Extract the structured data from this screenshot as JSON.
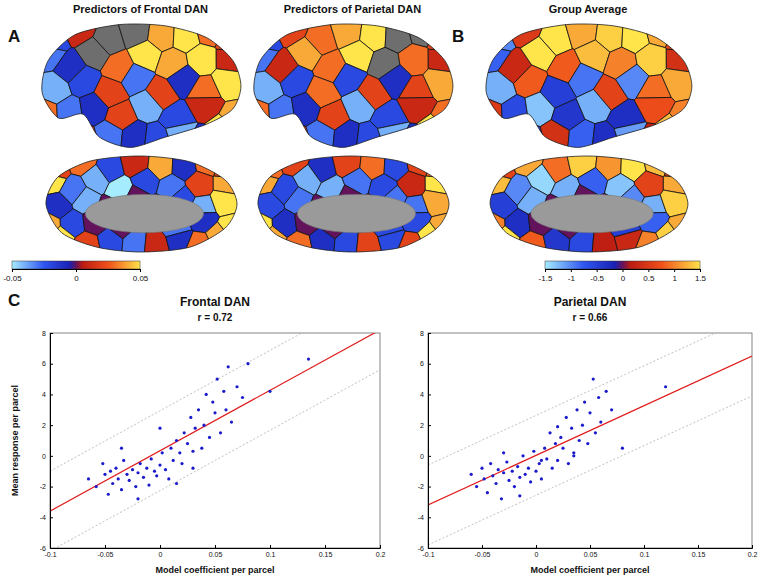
{
  "chart_data": [
    {
      "type": "brain_map",
      "panel": "A",
      "title": "Predictors of Frontal DAN",
      "lateral": [
        -0.02,
        0.01,
        null,
        null,
        0.04,
        0.05,
        0.03,
        0.02,
        -0.03,
        -0.01,
        null,
        0.03,
        0.05,
        0.04,
        0.05,
        0.01,
        -0.04,
        -0.02,
        0.02,
        -0.03,
        0.02,
        -0.01,
        0.03,
        0.05,
        0.03,
        -0.03,
        -0.01,
        0.02,
        -0.04,
        -0.02,
        0.01,
        0.04,
        -0.05,
        0.02,
        -0.03,
        -0.01,
        -0.02,
        -0.04,
        -0.01,
        0.05
      ],
      "medial": [
        0.02,
        0.03,
        -0.02,
        0.01,
        0.04,
        -0.01,
        0.03,
        0.02,
        0.05,
        -0.03,
        -0.04,
        -0.05,
        -0.02,
        -0.03,
        0.02,
        0.04,
        -0.01,
        -0.04,
        0.0,
        0.0,
        0.0,
        -0.02,
        -0.04,
        0.05,
        0.04,
        -0.02,
        0.0,
        0.0,
        0.0,
        -0.03,
        -0.01,
        0.05,
        0.05,
        0.02,
        -0.02,
        -0.03,
        0.01,
        -0.01,
        0.03,
        0.04
      ],
      "colorbar": {
        "range": [
          -0.05,
          0.05
        ],
        "ticks": [
          -0.05,
          0,
          0.05
        ]
      }
    },
    {
      "type": "brain_map",
      "title": "Predictors of Parietal DAN",
      "lateral": [
        -0.02,
        0.02,
        0.03,
        0.04,
        0.05,
        null,
        null,
        0.02,
        -0.03,
        0.01,
        0.04,
        0.03,
        0.05,
        null,
        0.03,
        0.01,
        -0.04,
        -0.02,
        0.03,
        -0.02,
        0.02,
        -0.01,
        0.02,
        0.04,
        0.03,
        -0.03,
        -0.01,
        0.02,
        -0.04,
        -0.02,
        0.01,
        0.03,
        -0.05,
        0.02,
        -0.03,
        -0.01,
        -0.02,
        -0.04,
        -0.01,
        0.05
      ],
      "medial": [
        0.03,
        0.02,
        -0.01,
        0.02,
        0.03,
        -0.02,
        0.02,
        0.03,
        0.04,
        -0.02,
        -0.04,
        -0.04,
        -0.03,
        -0.02,
        0.01,
        0.05,
        -0.02,
        -0.03,
        0.0,
        0.0,
        0.0,
        -0.03,
        -0.03,
        0.04,
        0.05,
        -0.01,
        0.0,
        0.0,
        0.0,
        -0.02,
        -0.02,
        0.04,
        0.04,
        0.03,
        -0.01,
        -0.02,
        0.02,
        -0.02,
        0.02,
        0.05
      ]
    },
    {
      "type": "brain_map",
      "panel": "B",
      "title": "Group Average",
      "lateral": [
        -1,
        0.5,
        1.5,
        1.2,
        1.4,
        1.5,
        1.2,
        0.6,
        -0.8,
        0.3,
        1.5,
        0.8,
        1.3,
        1,
        1.4,
        0.4,
        -1.2,
        0.8,
        -0.5,
        -0.9,
        0.6,
        -1,
        0.9,
        1.2,
        0.5,
        -0.6,
        -1.3,
        -0.4,
        -1.2,
        -0.3,
        0.7,
        1,
        1.2,
        -0.5,
        0.4,
        -0.8,
        -0.3,
        -1.1,
        0.2,
        1.3
      ],
      "medial": [
        0.6,
        1.2,
        0.9,
        1.4,
        1.1,
        1.5,
        1.3,
        0.5,
        1.3,
        -1,
        -1.4,
        -1.2,
        -0.8,
        -1.3,
        0.6,
        1.2,
        -0.5,
        -1.2,
        0,
        0,
        0,
        -1,
        -1.2,
        1.4,
        1,
        -0.3,
        0,
        0,
        0,
        -0.5,
        -0.8,
        1.2,
        1.5,
        0.8,
        -0.4,
        -0.6,
        0.2,
        0.3,
        1,
        1.4
      ],
      "colorbar": {
        "range": [
          -1.5,
          1.5
        ],
        "ticks": [
          -1.5,
          -1,
          -0.5,
          0,
          0.5,
          1,
          1.5
        ]
      }
    },
    {
      "type": "scatter",
      "panel": "C",
      "title": "Frontal DAN",
      "subtitle": "r = 0.72",
      "x_label": "Model coefficient per parcel",
      "y_label": "Mean response per parcel",
      "color": "#1a1acc",
      "marker": "dot",
      "x": [
        -0.065,
        -0.058,
        -0.052,
        -0.05,
        -0.047,
        -0.045,
        -0.043,
        -0.04,
        -0.038,
        -0.035,
        -0.033,
        -0.03,
        -0.028,
        -0.025,
        -0.022,
        -0.02,
        -0.018,
        -0.015,
        -0.012,
        -0.01,
        -0.008,
        -0.005,
        -0.003,
        0,
        0.002,
        0.005,
        0.008,
        0.01,
        0.012,
        0.015,
        0.018,
        0.02,
        0.022,
        0.025,
        0.028,
        0.03,
        0.032,
        0.035,
        0.038,
        0.04,
        0.042,
        0.045,
        0.048,
        0.05,
        0.052,
        0.055,
        0.058,
        0.06,
        0.062,
        0.065,
        0.07,
        0.075,
        0.08,
        0.1,
        0.135,
        -0.035,
        -0.02,
        0.0,
        0.015,
        0.03
      ],
      "values": [
        -1.5,
        -2,
        -0.5,
        -1.2,
        -2.5,
        -1,
        -1.8,
        -0.8,
        -1.5,
        -2.2,
        -0.3,
        -1.2,
        -1.6,
        -0.9,
        -2,
        -1.1,
        -0.5,
        -1.4,
        -0.8,
        -1.9,
        -0.2,
        -1,
        -1.3,
        -0.6,
        0.2,
        -0.9,
        -1.5,
        0.5,
        -0.3,
        1,
        0.2,
        -0.5,
        1.5,
        0.8,
        2.5,
        0.3,
        1.8,
        3,
        0.5,
        2,
        4,
        1.2,
        3.5,
        2.8,
        5,
        1.5,
        4.2,
        3,
        5.8,
        2.2,
        4.5,
        3.8,
        6,
        4.2,
        6.3,
        0.5,
        -2.8,
        1.8,
        -1.8,
        -0.8
      ],
      "fit": {
        "x": [
          -0.1,
          0.2
        ],
        "values": [
          -3.6,
          8.2
        ],
        "color": "#e01b1b"
      },
      "upper": {
        "x": [
          -0.1,
          0.2
        ],
        "values": [
          -1.0,
          10.8
        ],
        "color": "#b0b0b0"
      },
      "lower": {
        "x": [
          -0.1,
          0.2
        ],
        "values": [
          -6.2,
          5.6
        ],
        "color": "#b0b0b0"
      },
      "xlim": [
        -0.1,
        0.2
      ],
      "xticks": [
        -0.1,
        -0.05,
        0,
        0.05,
        0.1,
        0.15,
        0.2
      ],
      "ylim": [
        -6,
        8
      ],
      "yticks": [
        -6,
        -4,
        -2,
        0,
        2,
        4,
        6,
        8
      ]
    },
    {
      "type": "scatter",
      "title": "Parietal DAN",
      "subtitle": "r = 0.66",
      "x_label": "Model coefficient per parcel",
      "color": "#1a1acc",
      "marker": "dot",
      "x": [
        -0.06,
        -0.055,
        -0.05,
        -0.048,
        -0.045,
        -0.042,
        -0.04,
        -0.037,
        -0.035,
        -0.032,
        -0.03,
        -0.027,
        -0.025,
        -0.022,
        -0.02,
        -0.017,
        -0.015,
        -0.012,
        -0.01,
        -0.007,
        -0.005,
        -0.002,
        0,
        0.003,
        0.005,
        0.008,
        0.01,
        0.013,
        0.015,
        0.018,
        0.02,
        0.023,
        0.025,
        0.028,
        0.03,
        0.033,
        0.035,
        0.038,
        0.04,
        0.043,
        0.045,
        0.048,
        0.05,
        0.053,
        0.055,
        0.058,
        0.06,
        0.065,
        0.07,
        0.08,
        0.12,
        -0.03,
        -0.015,
        0.005,
        0.02,
        0.035
      ],
      "values": [
        -1.2,
        -2,
        -0.8,
        -1.5,
        -2.4,
        -0.5,
        -1.3,
        -1.8,
        -0.9,
        -2.8,
        -1.1,
        -0.4,
        -1.6,
        -1,
        -2,
        -0.7,
        -1.4,
        0,
        -1.2,
        -0.8,
        -1.7,
        0.3,
        -1,
        -0.5,
        -1.5,
        0.5,
        -0.2,
        1.5,
        -0.8,
        0.8,
        -0.3,
        1.2,
        0.5,
        2.5,
        -0.5,
        1.8,
        0.2,
        3,
        1,
        2,
        3.5,
        0.8,
        2.8,
        5,
        1.5,
        3.8,
        2.2,
        4.2,
        3,
        0.5,
        4.5,
        0.2,
        -2.6,
        -0.3,
        1.9,
        0
      ],
      "fit": {
        "x": [
          -0.1,
          0.2
        ],
        "values": [
          -3.2,
          6.5
        ],
        "color": "#e01b1b"
      },
      "upper": {
        "x": [
          -0.1,
          0.2
        ],
        "values": [
          -0.6,
          9.1
        ],
        "color": "#b0b0b0"
      },
      "lower": {
        "x": [
          -0.1,
          0.2
        ],
        "values": [
          -5.8,
          3.9
        ],
        "color": "#b0b0b0"
      },
      "xlim": [
        -0.1,
        0.2
      ],
      "xticks": [
        -0.1,
        -0.05,
        0,
        0.05,
        0.1,
        0.15,
        0.2
      ],
      "ylim": [
        -6,
        8
      ],
      "yticks": [
        -6,
        -4,
        -2,
        0,
        2,
        4,
        6,
        8
      ]
    }
  ]
}
